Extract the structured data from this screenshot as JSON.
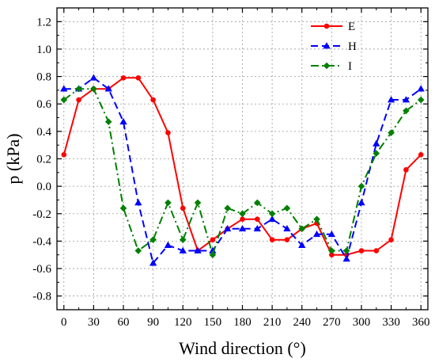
{
  "chart_data": {
    "type": "line",
    "title": "",
    "xlabel": "Wind direction (°)",
    "ylabel": "p (kPa)",
    "xlim": [
      -7,
      367
    ],
    "ylim": [
      -0.9,
      1.3
    ],
    "xticks": [
      0,
      30,
      60,
      90,
      120,
      150,
      180,
      210,
      240,
      270,
      300,
      330,
      360
    ],
    "xtick_labels": [
      "0",
      "30",
      "60",
      "90",
      "120",
      "150",
      "180",
      "210",
      "240",
      "270",
      "300",
      "330",
      "360"
    ],
    "yticks": [
      -0.8,
      -0.6,
      -0.4,
      -0.2,
      0.0,
      0.2,
      0.4,
      0.6,
      0.8,
      1.0,
      1.2
    ],
    "ytick_labels": [
      "-0.8",
      "-0.6",
      "-0.4",
      "-0.2",
      "0.0",
      "0.2",
      "0.4",
      "0.6",
      "0.8",
      "1.0",
      "1.2"
    ],
    "grid": true,
    "legend_position": "top-right",
    "x": [
      0,
      15,
      30,
      45,
      60,
      75,
      90,
      105,
      120,
      135,
      150,
      165,
      180,
      195,
      210,
      225,
      240,
      255,
      270,
      285,
      300,
      315,
      330,
      345,
      360
    ],
    "series": [
      {
        "name": "E",
        "color": "#ff0000",
        "line_style": "solid",
        "marker": "circle",
        "values": [
          0.23,
          0.63,
          0.71,
          0.71,
          0.79,
          0.79,
          0.63,
          0.39,
          -0.16,
          -0.47,
          -0.39,
          -0.31,
          -0.24,
          -0.24,
          -0.39,
          -0.39,
          -0.31,
          -0.27,
          -0.5,
          -0.5,
          -0.47,
          -0.47,
          -0.39,
          0.12,
          0.23
        ]
      },
      {
        "name": "H",
        "color": "#0000ff",
        "line_style": "dashed",
        "marker": "triangle",
        "values": [
          0.71,
          0.71,
          0.79,
          0.71,
          0.47,
          -0.12,
          -0.56,
          -0.43,
          -0.47,
          -0.47,
          -0.47,
          -0.31,
          -0.31,
          -0.31,
          -0.24,
          -0.31,
          -0.43,
          -0.35,
          -0.35,
          -0.53,
          -0.12,
          0.31,
          0.63,
          0.63,
          0.71
        ]
      },
      {
        "name": "I",
        "color": "#008000",
        "line_style": "dashdot",
        "marker": "diamond",
        "values": [
          0.63,
          0.71,
          0.71,
          0.47,
          -0.16,
          -0.47,
          -0.39,
          -0.12,
          -0.39,
          -0.12,
          -0.5,
          -0.16,
          -0.2,
          -0.12,
          -0.2,
          -0.16,
          -0.31,
          -0.24,
          -0.47,
          -0.47,
          0.0,
          0.24,
          0.39,
          0.55,
          0.63
        ]
      }
    ]
  }
}
